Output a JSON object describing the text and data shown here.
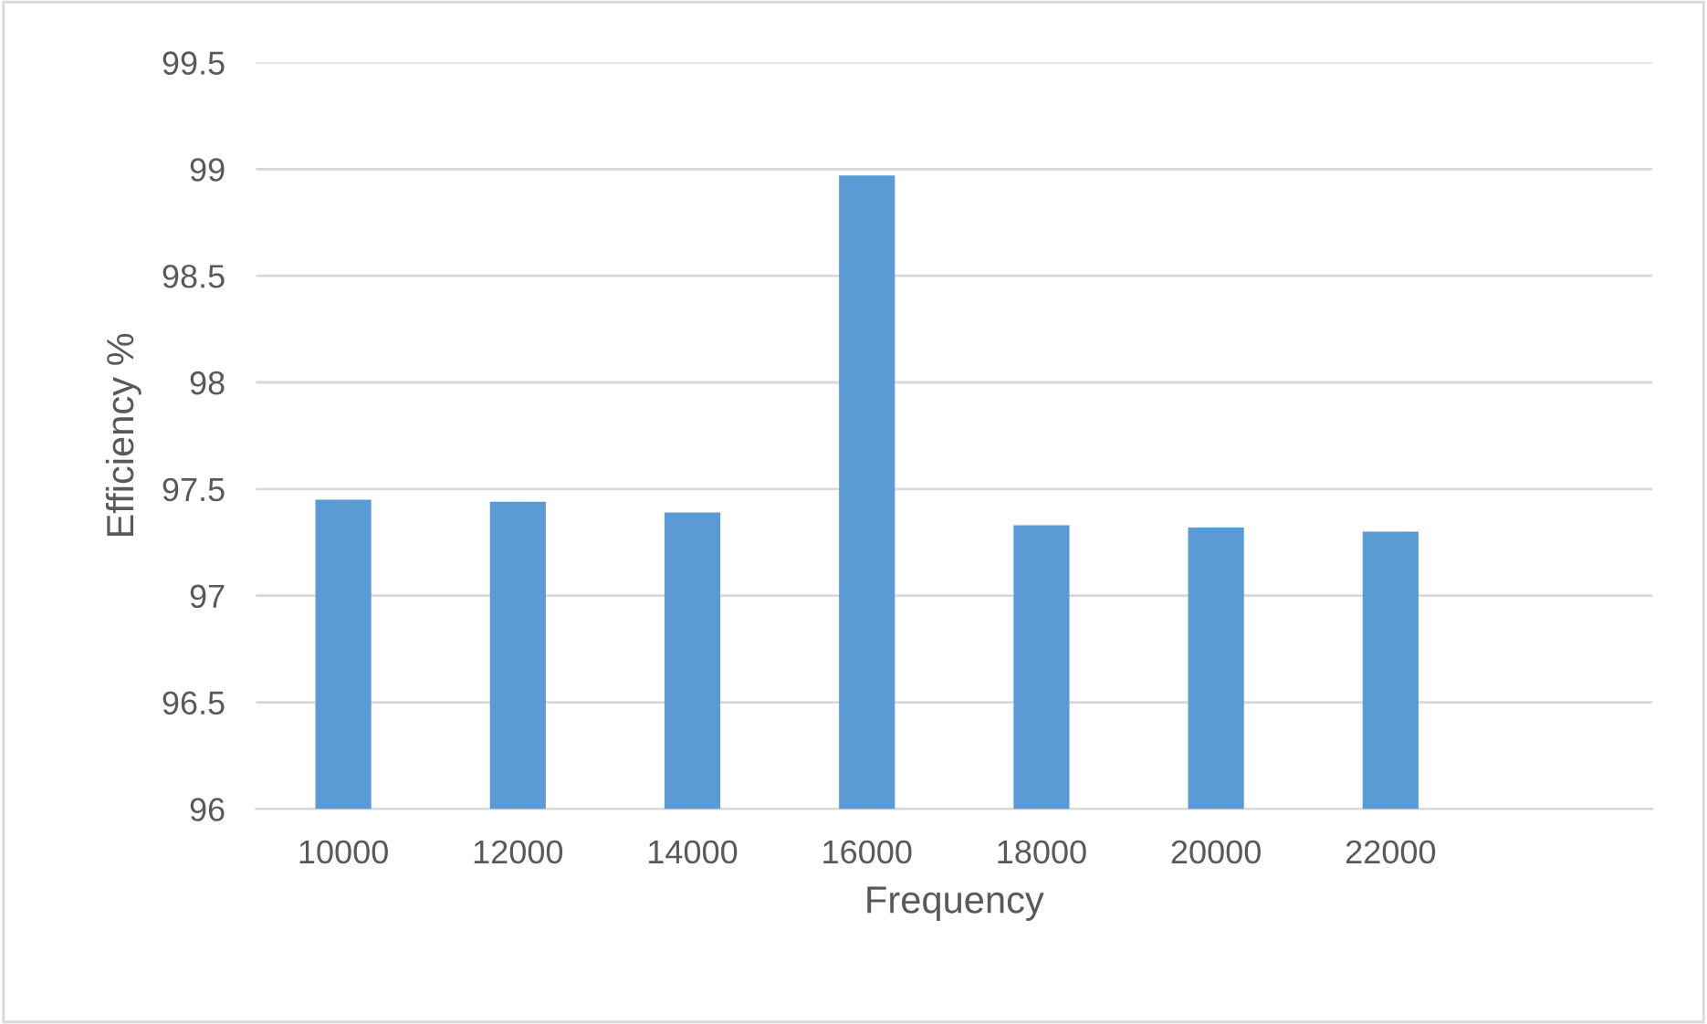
{
  "chart_data": {
    "type": "bar",
    "xlabel": "Frequency",
    "ylabel": "Efficiency %",
    "categories": [
      "10000",
      "12000",
      "14000",
      "16000",
      "18000",
      "20000",
      "22000",
      null
    ],
    "values": [
      97.45,
      97.44,
      97.39,
      98.97,
      97.33,
      97.32,
      97.3,
      null
    ],
    "color": "#5b9bd5",
    "ylim": [
      96,
      99.5
    ],
    "yticks": [
      96,
      96.5,
      97,
      97.5,
      98,
      98.5,
      99,
      99.5
    ],
    "grid": "y"
  }
}
